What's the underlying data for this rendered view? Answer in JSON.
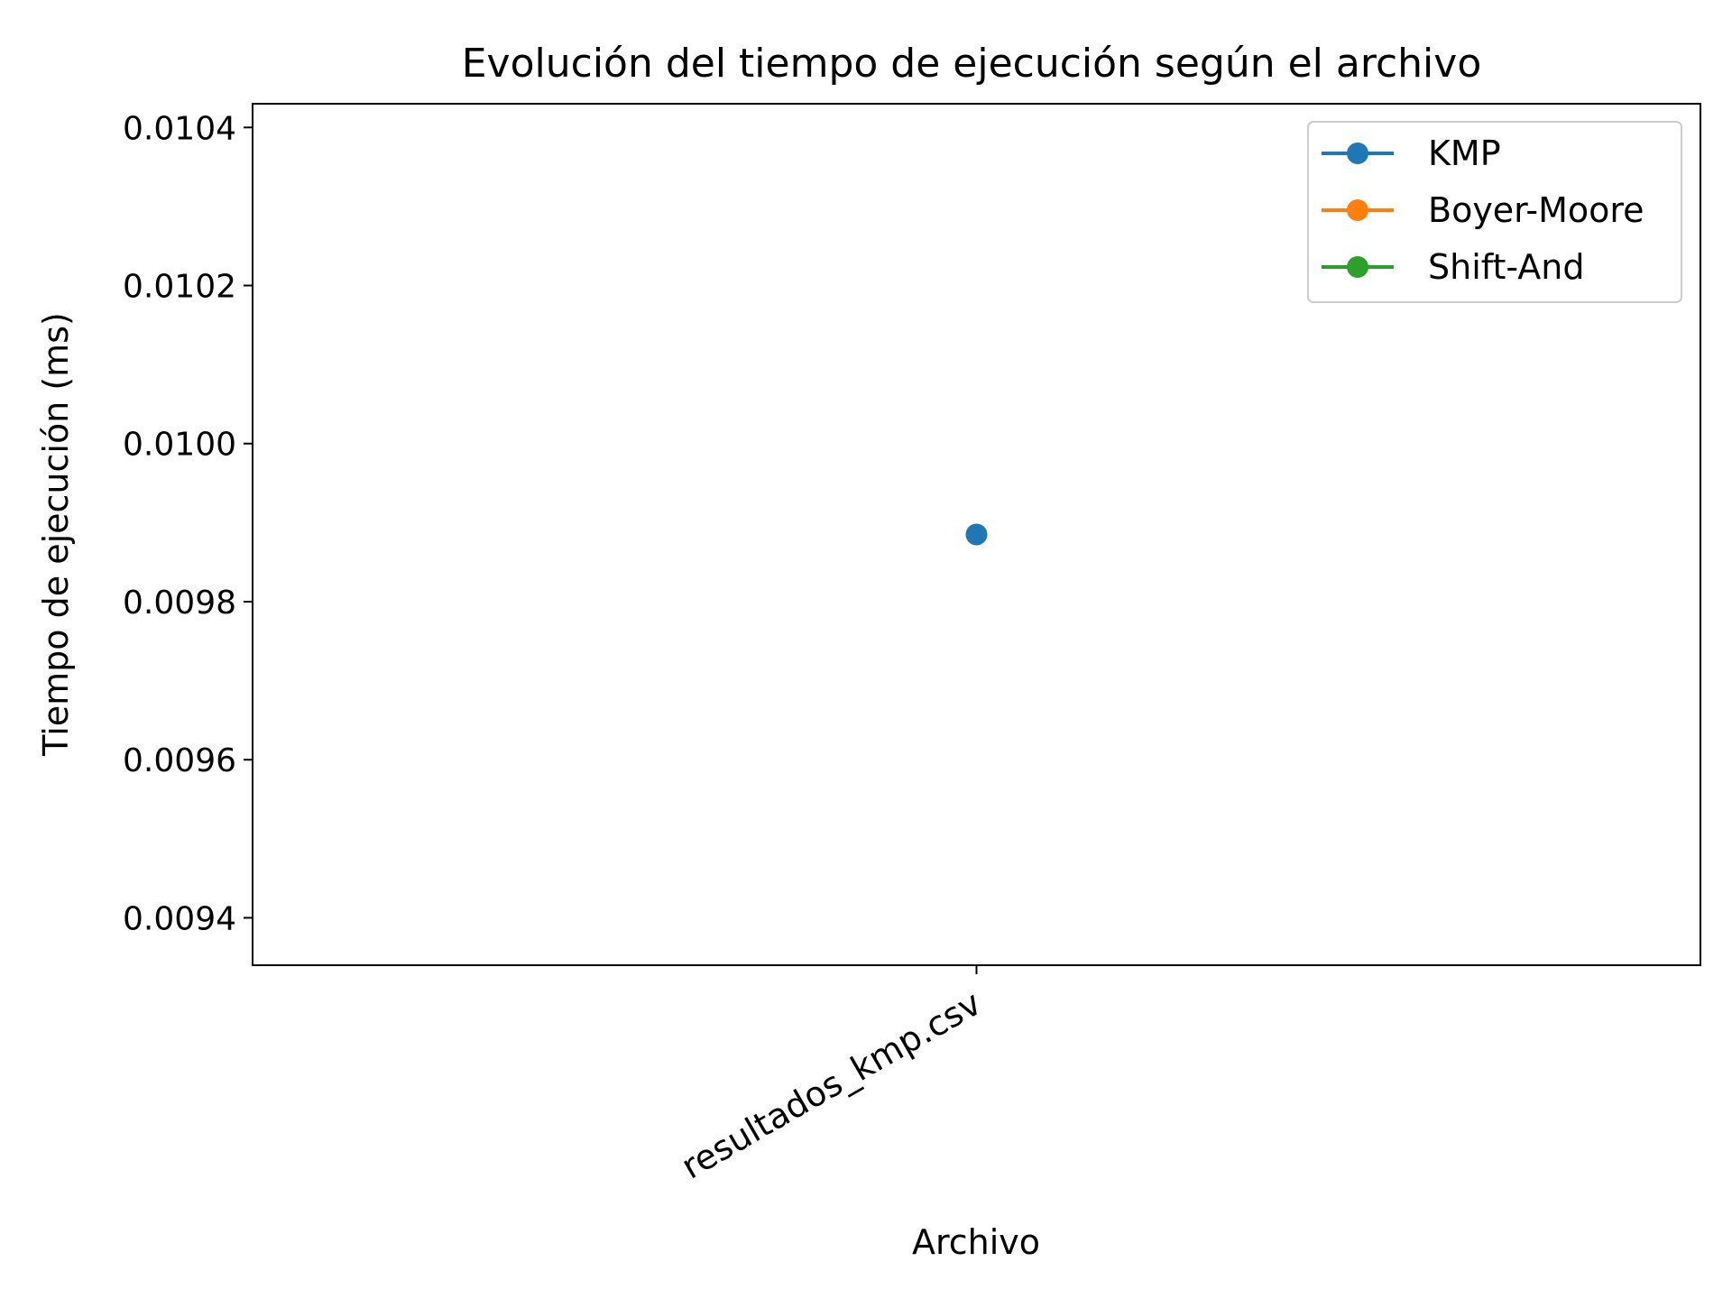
{
  "chart_data": {
    "type": "line",
    "title": "Evolución del tiempo de ejecución según el archivo",
    "xlabel": "Archivo",
    "ylabel": "Tiempo de ejecución (ms)",
    "categories": [
      "resultados_kmp.csv"
    ],
    "x_tick_rotation_deg": 30,
    "ylim": [
      0.00934,
      0.01043
    ],
    "yticks": [
      0.0094,
      0.0096,
      0.0098,
      0.01,
      0.0102,
      0.0104
    ],
    "ytick_labels": [
      "0.0094",
      "0.0096",
      "0.0098",
      "0.0100",
      "0.0102",
      "0.0104"
    ],
    "series": [
      {
        "name": "KMP",
        "color": "#1f77b4",
        "marker": "circle",
        "values": [
          0.009885
        ]
      },
      {
        "name": "Boyer-Moore",
        "color": "#ff7f0e",
        "marker": "circle",
        "values": [
          null
        ]
      },
      {
        "name": "Shift-And",
        "color": "#2ca02c",
        "marker": "circle",
        "values": [
          null
        ]
      }
    ],
    "legend_position": "top-right",
    "grid": false
  }
}
